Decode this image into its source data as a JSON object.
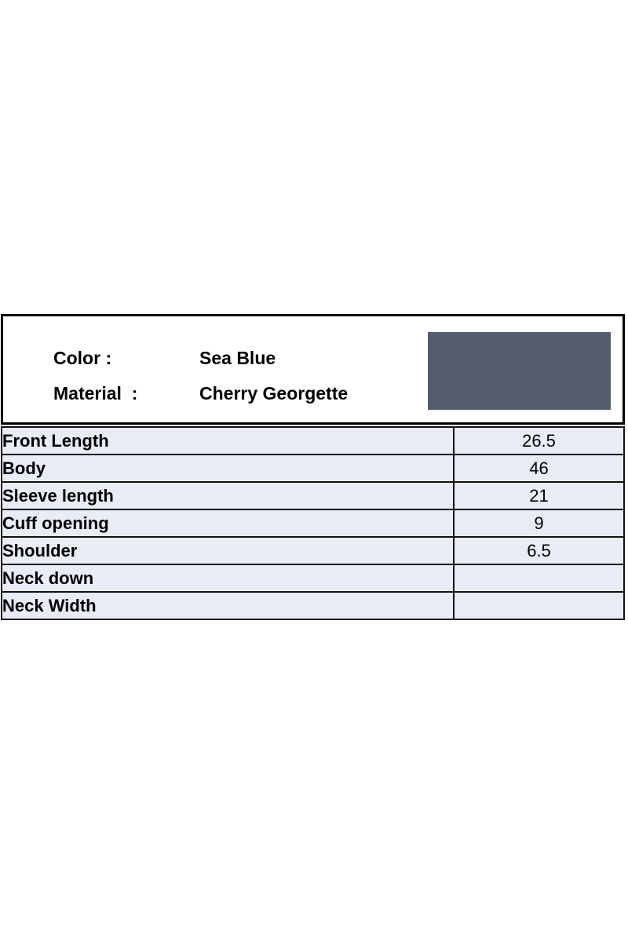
{
  "info": {
    "color_label": "Color :",
    "color_value": "Sea Blue",
    "material_label": "Material  :",
    "material_value": "Cherry Georgette",
    "swatch_color": "#555d6d"
  },
  "table": {
    "row_bg": "#e9ecf5",
    "border_color": "#111111",
    "rows": [
      {
        "label": "Front Length",
        "value": "26.5"
      },
      {
        "label": "Body",
        "value": "46"
      },
      {
        "label": "Sleeve length",
        "value": "21"
      },
      {
        "label": "Cuff opening",
        "value": "9"
      },
      {
        "label": "Shoulder",
        "value": "6.5"
      },
      {
        "label": "Neck down",
        "value": ""
      },
      {
        "label": "Neck Width",
        "value": ""
      }
    ]
  }
}
